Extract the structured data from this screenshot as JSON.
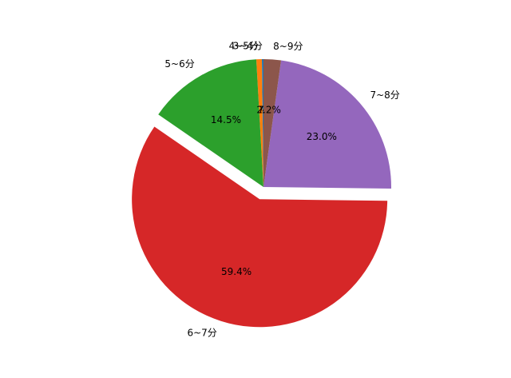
{
  "chart_data": {
    "type": "pie",
    "categories": [
      "3~4分",
      "4~5分",
      "5~6分",
      "6~7分",
      "7~8分",
      "8~9分"
    ],
    "values": [
      0.2,
      0.7,
      14.5,
      59.4,
      23.0,
      2.2
    ],
    "value_labels": [
      "0.2%",
      "0.7%",
      "14.5%",
      "59.4%",
      "23.0%",
      "2.2%"
    ],
    "colors": [
      "#1f77b4",
      "#ff7f0e",
      "#2ca02c",
      "#d62728",
      "#9467bd",
      "#8c564b"
    ],
    "explode": [
      0,
      0,
      0,
      0.1,
      0,
      0
    ]
  }
}
